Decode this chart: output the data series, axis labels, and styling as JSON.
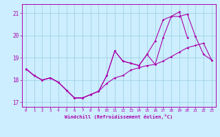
{
  "xlabel": "Windchill (Refroidissement éolien,°C)",
  "background_color": "#cceeff",
  "grid_color": "#99ccdd",
  "line_color": "#aa00aa",
  "x_hours": [
    0,
    1,
    2,
    3,
    4,
    5,
    6,
    7,
    8,
    9,
    10,
    11,
    12,
    13,
    14,
    15,
    16,
    17,
    18,
    19,
    20,
    21,
    22,
    23
  ],
  "line1": [
    18.5,
    18.2,
    18.0,
    18.1,
    17.9,
    17.55,
    17.2,
    17.2,
    17.35,
    17.5,
    17.85,
    18.1,
    18.2,
    18.45,
    18.55,
    18.65,
    18.7,
    18.85,
    19.05,
    19.25,
    19.45,
    19.55,
    19.65,
    18.9
  ],
  "line2": [
    18.5,
    18.2,
    18.0,
    18.1,
    17.9,
    17.55,
    17.2,
    17.2,
    17.35,
    17.5,
    18.2,
    19.3,
    18.85,
    18.75,
    18.65,
    19.15,
    18.7,
    19.9,
    20.85,
    20.85,
    20.95,
    19.95,
    19.15,
    18.9
  ],
  "line3": [
    18.5,
    18.2,
    18.0,
    18.1,
    17.9,
    17.55,
    17.2,
    17.2,
    17.35,
    17.5,
    18.2,
    19.3,
    18.85,
    18.75,
    18.65,
    19.15,
    19.75,
    20.7,
    20.85,
    21.05,
    19.9,
    null,
    null,
    null
  ],
  "ylim": [
    16.8,
    21.4
  ],
  "yticks": [
    17,
    18,
    19,
    20,
    21
  ],
  "xtick_labels": [
    "0",
    "1",
    "2",
    "3",
    "4",
    "5",
    "6",
    "7",
    "8",
    "9",
    "10",
    "11",
    "12",
    "13",
    "14",
    "15",
    "16",
    "17",
    "18",
    "19",
    "20",
    "21",
    "22",
    "23"
  ]
}
